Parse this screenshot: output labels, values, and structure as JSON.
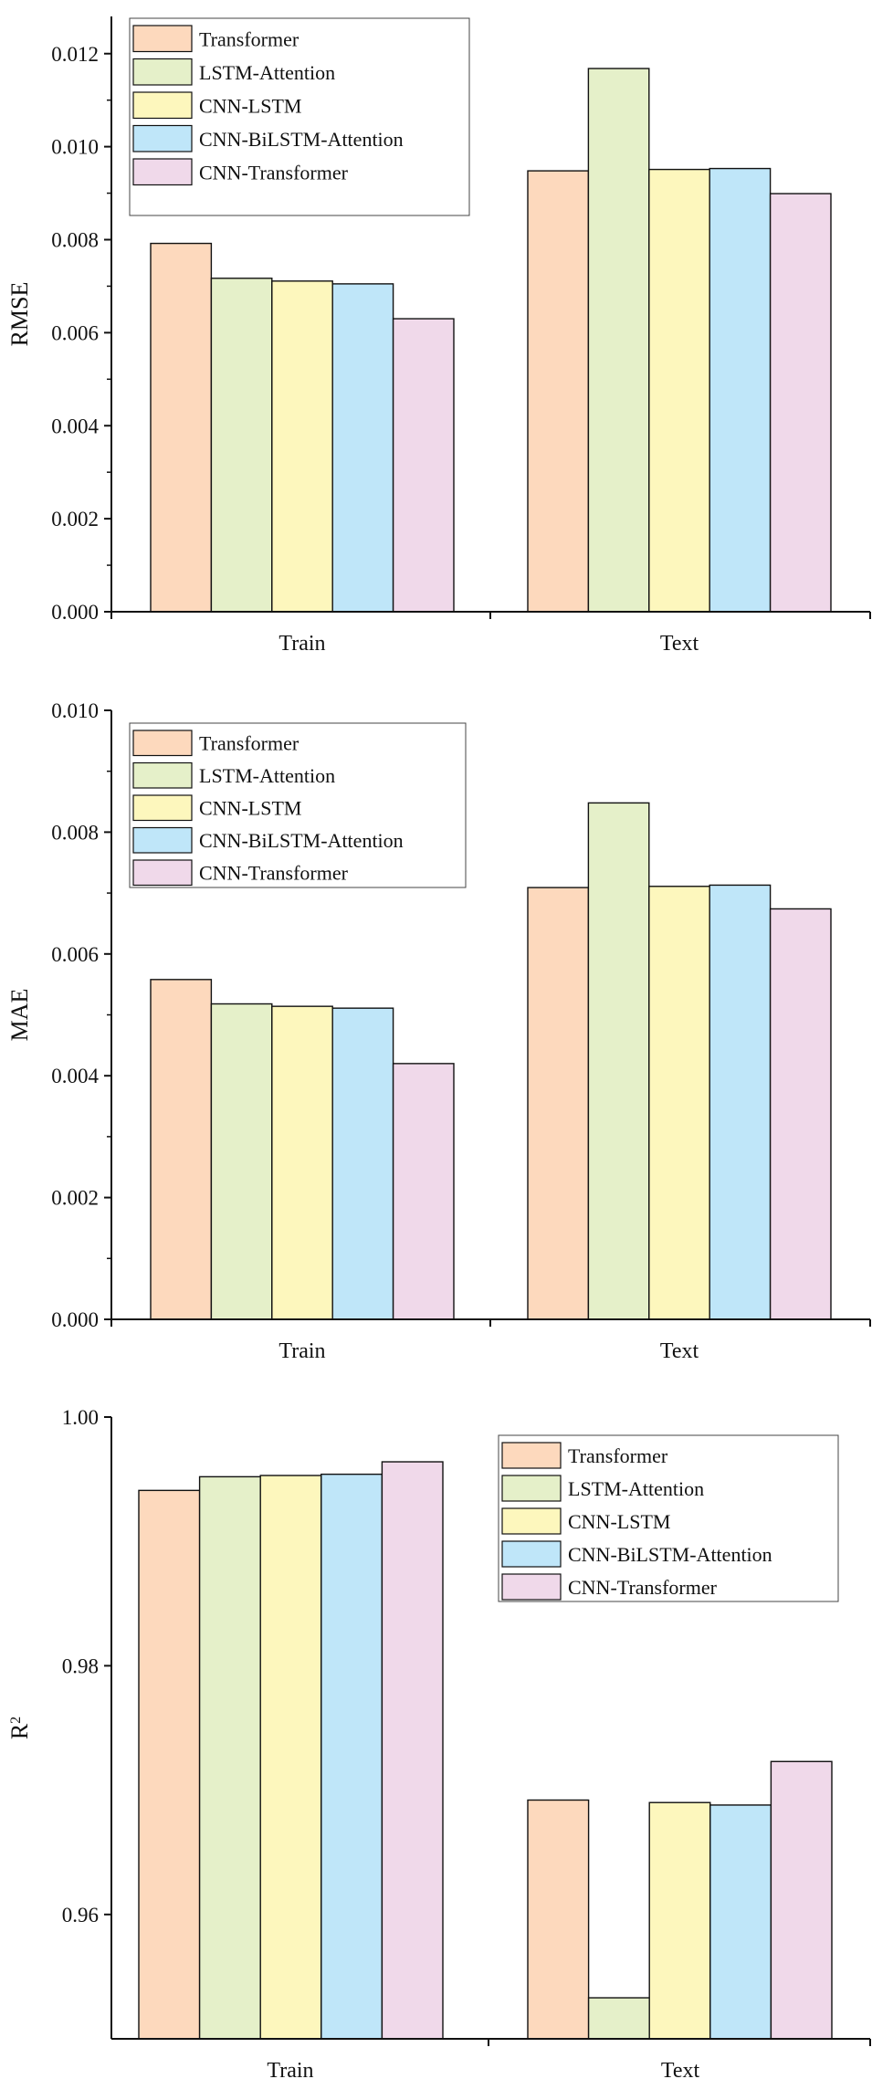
{
  "colors": {
    "Transformer": "#fdd9bd",
    "LSTM-Attention": "#e5f0c9",
    "CNN-LSTM": "#fdf7bd",
    "CNN-BiLSTM-Attention": "#bfe6f9",
    "CNN-Transformer": "#f0d9ea"
  },
  "chart_data": [
    {
      "type": "bar",
      "categories": [
        "Train",
        "Text"
      ],
      "ylabel": "RMSE",
      "ylabel_sup": "",
      "ylim": [
        0,
        0.0128
      ],
      "yticks": [
        "0.000",
        "0.002",
        "0.004",
        "0.006",
        "0.008",
        "0.010",
        "0.012"
      ],
      "ytick_values": [
        0.0,
        0.002,
        0.004,
        0.006,
        0.008,
        0.01,
        0.012
      ],
      "legend_position": "top-left",
      "series": [
        {
          "name": "Transformer",
          "values": [
            0.00792,
            0.00948
          ]
        },
        {
          "name": "LSTM-Attention",
          "values": [
            0.00717,
            0.01168
          ]
        },
        {
          "name": "CNN-LSTM",
          "values": [
            0.00711,
            0.00951
          ]
        },
        {
          "name": "CNN-BiLSTM-Attention",
          "values": [
            0.00705,
            0.00953
          ]
        },
        {
          "name": "CNN-Transformer",
          "values": [
            0.0063,
            0.00899
          ]
        }
      ]
    },
    {
      "type": "bar",
      "categories": [
        "Train",
        "Text"
      ],
      "ylabel": "MAE",
      "ylabel_sup": "",
      "ylim": [
        0,
        0.01
      ],
      "yticks": [
        "0.000",
        "0.002",
        "0.004",
        "0.006",
        "0.008",
        "0.010"
      ],
      "ytick_values": [
        0.0,
        0.002,
        0.004,
        0.006,
        0.008,
        0.01
      ],
      "legend_position": "top-left",
      "series": [
        {
          "name": "Transformer",
          "values": [
            0.00558,
            0.00709
          ]
        },
        {
          "name": "LSTM-Attention",
          "values": [
            0.00518,
            0.00848
          ]
        },
        {
          "name": "CNN-LSTM",
          "values": [
            0.00514,
            0.00711
          ]
        },
        {
          "name": "CNN-BiLSTM-Attention",
          "values": [
            0.00511,
            0.00713
          ]
        },
        {
          "name": "CNN-Transformer",
          "values": [
            0.0042,
            0.00674
          ]
        }
      ]
    },
    {
      "type": "bar",
      "categories": [
        "Train",
        "Text"
      ],
      "ylabel": "R",
      "ylabel_sup": "2",
      "ylim": [
        0.95,
        1.0
      ],
      "yticks": [
        "0.96",
        "0.98",
        "1.00"
      ],
      "ytick_values": [
        0.96,
        0.98,
        1.0
      ],
      "legend_position": "top-right",
      "series": [
        {
          "name": "Transformer",
          "values": [
            0.9941,
            0.9692
          ]
        },
        {
          "name": "LSTM-Attention",
          "values": [
            0.9952,
            0.9533
          ]
        },
        {
          "name": "CNN-LSTM",
          "values": [
            0.9953,
            0.969
          ]
        },
        {
          "name": "CNN-BiLSTM-Attention",
          "values": [
            0.9954,
            0.9688
          ]
        },
        {
          "name": "CNN-Transformer",
          "values": [
            0.9964,
            0.9723
          ]
        }
      ]
    }
  ]
}
